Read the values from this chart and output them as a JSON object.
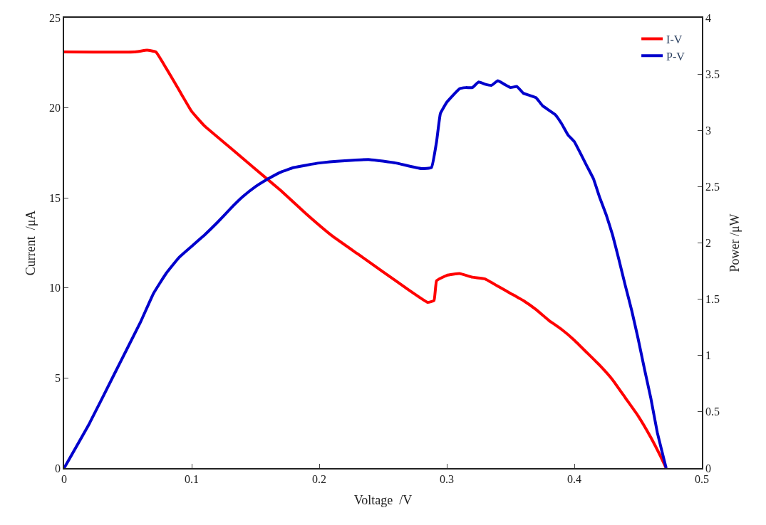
{
  "chart_data": {
    "type": "line",
    "xlabel": "Voltage  /V",
    "ylabel": "Current  /μA",
    "y2label": "Power /μW",
    "xlim": [
      0,
      0.5
    ],
    "xticks": [
      0,
      0.1,
      0.2,
      0.3,
      0.4,
      0.5
    ],
    "ylim": [
      0,
      25
    ],
    "yticks": [
      0,
      5,
      10,
      15,
      20,
      25
    ],
    "y2lim": [
      0,
      4
    ],
    "y2ticks": [
      0,
      0.5,
      1,
      1.5,
      2,
      2.5,
      3,
      3.5,
      4
    ],
    "legend": "top right",
    "marker": "none",
    "line_style": "solid",
    "series": [
      {
        "name": "I-V",
        "color": "#ff0000",
        "x": [
          0,
          0.055,
          0.065,
          0.072,
          0.08,
          0.09,
          0.1,
          0.11,
          0.13,
          0.15,
          0.17,
          0.19,
          0.21,
          0.23,
          0.25,
          0.27,
          0.285,
          0.29,
          0.292,
          0.3,
          0.31,
          0.32,
          0.33,
          0.34,
          0.35,
          0.36,
          0.37,
          0.38,
          0.39,
          0.4,
          0.41,
          0.42,
          0.43,
          0.44,
          0.45,
          0.46,
          0.468,
          0.472
        ],
        "values": [
          23.1,
          23.1,
          23.2,
          23.1,
          22.2,
          21,
          19.8,
          19,
          17.8,
          16.6,
          15.4,
          14.1,
          12.9,
          11.9,
          10.9,
          9.9,
          9.2,
          9.3,
          10.4,
          10.7,
          10.8,
          10.6,
          10.5,
          10.1,
          9.7,
          9.3,
          8.8,
          8.2,
          7.7,
          7.1,
          6.4,
          5.7,
          4.9,
          3.9,
          2.9,
          1.7,
          0.6,
          0
        ]
      },
      {
        "name": "P-V",
        "color": "#0000cc",
        "axis": "y2",
        "x": [
          0,
          0.02,
          0.04,
          0.06,
          0.07,
          0.08,
          0.09,
          0.1,
          0.11,
          0.12,
          0.13,
          0.14,
          0.15,
          0.16,
          0.17,
          0.18,
          0.2,
          0.22,
          0.24,
          0.26,
          0.28,
          0.288,
          0.292,
          0.295,
          0.3,
          0.31,
          0.315,
          0.32,
          0.325,
          0.33,
          0.335,
          0.34,
          0.345,
          0.35,
          0.355,
          0.36,
          0.365,
          0.37,
          0.375,
          0.38,
          0.385,
          0.39,
          0.395,
          0.4,
          0.41,
          0.415,
          0.42,
          0.425,
          0.43,
          0.435,
          0.44,
          0.445,
          0.45,
          0.455,
          0.46,
          0.465,
          0.472
        ],
        "values": [
          0,
          0.4,
          0.85,
          1.3,
          1.55,
          1.73,
          1.87,
          1.97,
          2.07,
          2.18,
          2.3,
          2.41,
          2.5,
          2.57,
          2.63,
          2.67,
          2.71,
          2.73,
          2.74,
          2.71,
          2.66,
          2.67,
          2.9,
          3.15,
          3.25,
          3.37,
          3.38,
          3.38,
          3.43,
          3.41,
          3.4,
          3.44,
          3.41,
          3.38,
          3.39,
          3.33,
          3.31,
          3.29,
          3.22,
          3.18,
          3.14,
          3.06,
          2.96,
          2.9,
          2.68,
          2.57,
          2.4,
          2.25,
          2.07,
          1.85,
          1.62,
          1.4,
          1.15,
          0.88,
          0.62,
          0.32,
          0
        ]
      }
    ]
  }
}
